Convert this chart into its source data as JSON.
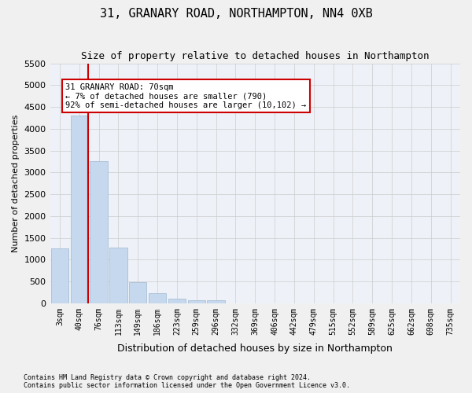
{
  "title1": "31, GRANARY ROAD, NORTHAMPTON, NN4 0XB",
  "title2": "Size of property relative to detached houses in Northampton",
  "xlabel": "Distribution of detached houses by size in Northampton",
  "ylabel": "Number of detached properties",
  "footnote": "Contains HM Land Registry data © Crown copyright and database right 2024.\nContains public sector information licensed under the Open Government Licence v3.0.",
  "bin_labels": [
    "3sqm",
    "40sqm",
    "76sqm",
    "113sqm",
    "149sqm",
    "186sqm",
    "223sqm",
    "259sqm",
    "296sqm",
    "332sqm",
    "369sqm",
    "406sqm",
    "442sqm",
    "479sqm",
    "515sqm",
    "552sqm",
    "589sqm",
    "625sqm",
    "662sqm",
    "698sqm",
    "735sqm"
  ],
  "bar_values": [
    1250,
    4300,
    3250,
    1275,
    475,
    225,
    100,
    75,
    75,
    0,
    0,
    0,
    0,
    0,
    0,
    0,
    0,
    0,
    0,
    0,
    0
  ],
  "bar_color": "#c5d8ed",
  "bar_edge_color": "#a0b8d0",
  "grid_color": "#cccccc",
  "bg_color": "#eef2f8",
  "annotation_text": "31 GRANARY ROAD: 70sqm\n← 7% of detached houses are smaller (790)\n92% of semi-detached houses are larger (10,102) →",
  "annotation_box_color": "#ffffff",
  "annotation_box_edge": "#cc0000",
  "property_line_color": "#cc0000",
  "property_line_x": 1.45,
  "ylim": [
    0,
    5500
  ],
  "yticks": [
    0,
    500,
    1000,
    1500,
    2000,
    2500,
    3000,
    3500,
    4000,
    4500,
    5000,
    5500
  ],
  "fig_bg_color": "#f0f0f0"
}
